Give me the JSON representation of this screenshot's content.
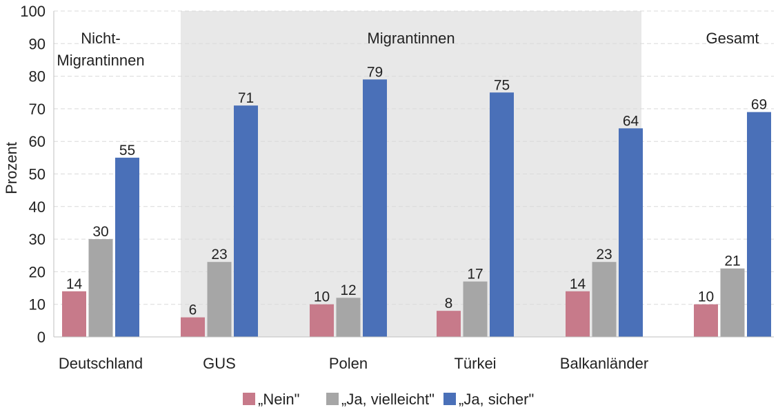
{
  "chart_data": {
    "type": "bar",
    "ylabel": "Prozent",
    "ylim": [
      0,
      100
    ],
    "yticks": [
      0,
      10,
      20,
      30,
      40,
      50,
      60,
      70,
      80,
      90,
      100
    ],
    "grid": true,
    "categories": [
      "Deutschland",
      "GUS",
      "Polen",
      "Türkei",
      "Balkanländer",
      ""
    ],
    "series": [
      {
        "name": "„Nein\"",
        "color": "#c77a8a",
        "values": [
          14,
          6,
          10,
          8,
          14,
          10
        ]
      },
      {
        "name": "„Ja, vielleicht\"",
        "color": "#a6a6a6",
        "values": [
          30,
          23,
          12,
          17,
          23,
          21
        ]
      },
      {
        "name": "„Ja, sicher\"",
        "color": "#4a70b8",
        "values": [
          55,
          71,
          79,
          75,
          64,
          69
        ]
      }
    ],
    "groups": [
      {
        "label_lines": [
          "Nicht-",
          "Migrantinnen"
        ],
        "categories": [
          0
        ],
        "shaded": false
      },
      {
        "label_lines": [
          "Migrantinnen"
        ],
        "categories": [
          1,
          2,
          3,
          4
        ],
        "shaded": true
      },
      {
        "label_lines": [
          "Gesamt"
        ],
        "categories": [
          5
        ],
        "shaded": false
      }
    ],
    "shade_color": "#e8e8e8",
    "legend_position": "bottom"
  }
}
